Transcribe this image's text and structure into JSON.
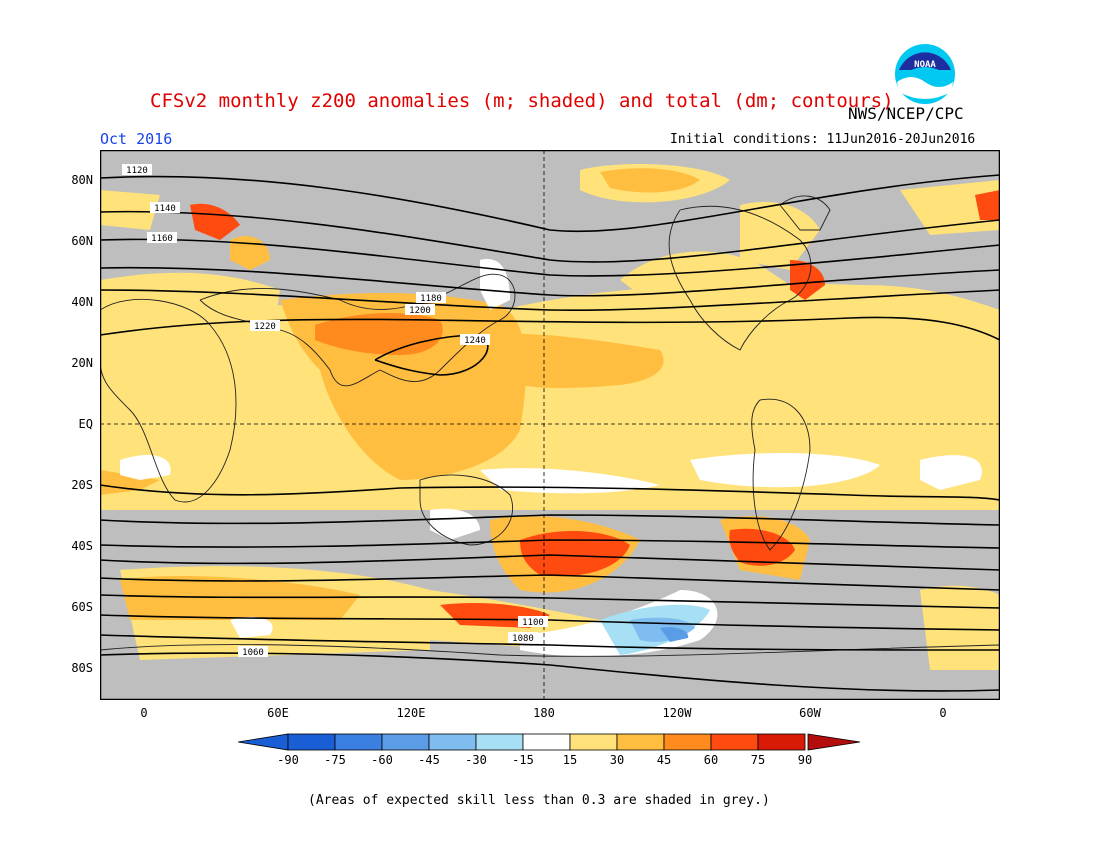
{
  "title": "CFSv2 monthly z200 anomalies (m; shaded) and total (dm; contours)",
  "agency": "NWS/NCEP/CPC",
  "forecast_month": "Oct 2016",
  "initial_conditions": "Initial conditions: 11Jun2016-20Jun2016",
  "footnote": "(Areas of expected skill less than 0.3 are shaded in grey.)",
  "logo_text": "NOAA",
  "map": {
    "lat_labels": [
      "80N",
      "60N",
      "40N",
      "20N",
      "EQ",
      "20S",
      "40S",
      "60S",
      "80S"
    ],
    "lon_labels": [
      "0",
      "60E",
      "120E",
      "180",
      "120W",
      "60W",
      "0"
    ],
    "contour_labels_dm": [
      "1120",
      "1140",
      "1160",
      "1180",
      "1200",
      "1220",
      "1240",
      "1100",
      "1080",
      "1060"
    ]
  },
  "colorbar": {
    "labels": [
      "-90",
      "-75",
      "-60",
      "-45",
      "-30",
      "-15",
      "15",
      "30",
      "45",
      "60",
      "75",
      "90"
    ],
    "colors": [
      "#1a5ed6",
      "#3b7fe0",
      "#5a9de6",
      "#7fbcef",
      "#a7e0f4",
      "#ffffff",
      "#ffe27a",
      "#ffbe3f",
      "#ff8a1e",
      "#ff4b0f",
      "#d91a06"
    ],
    "end_low": "#1a5ed6",
    "end_high": "#b30d0d"
  }
}
